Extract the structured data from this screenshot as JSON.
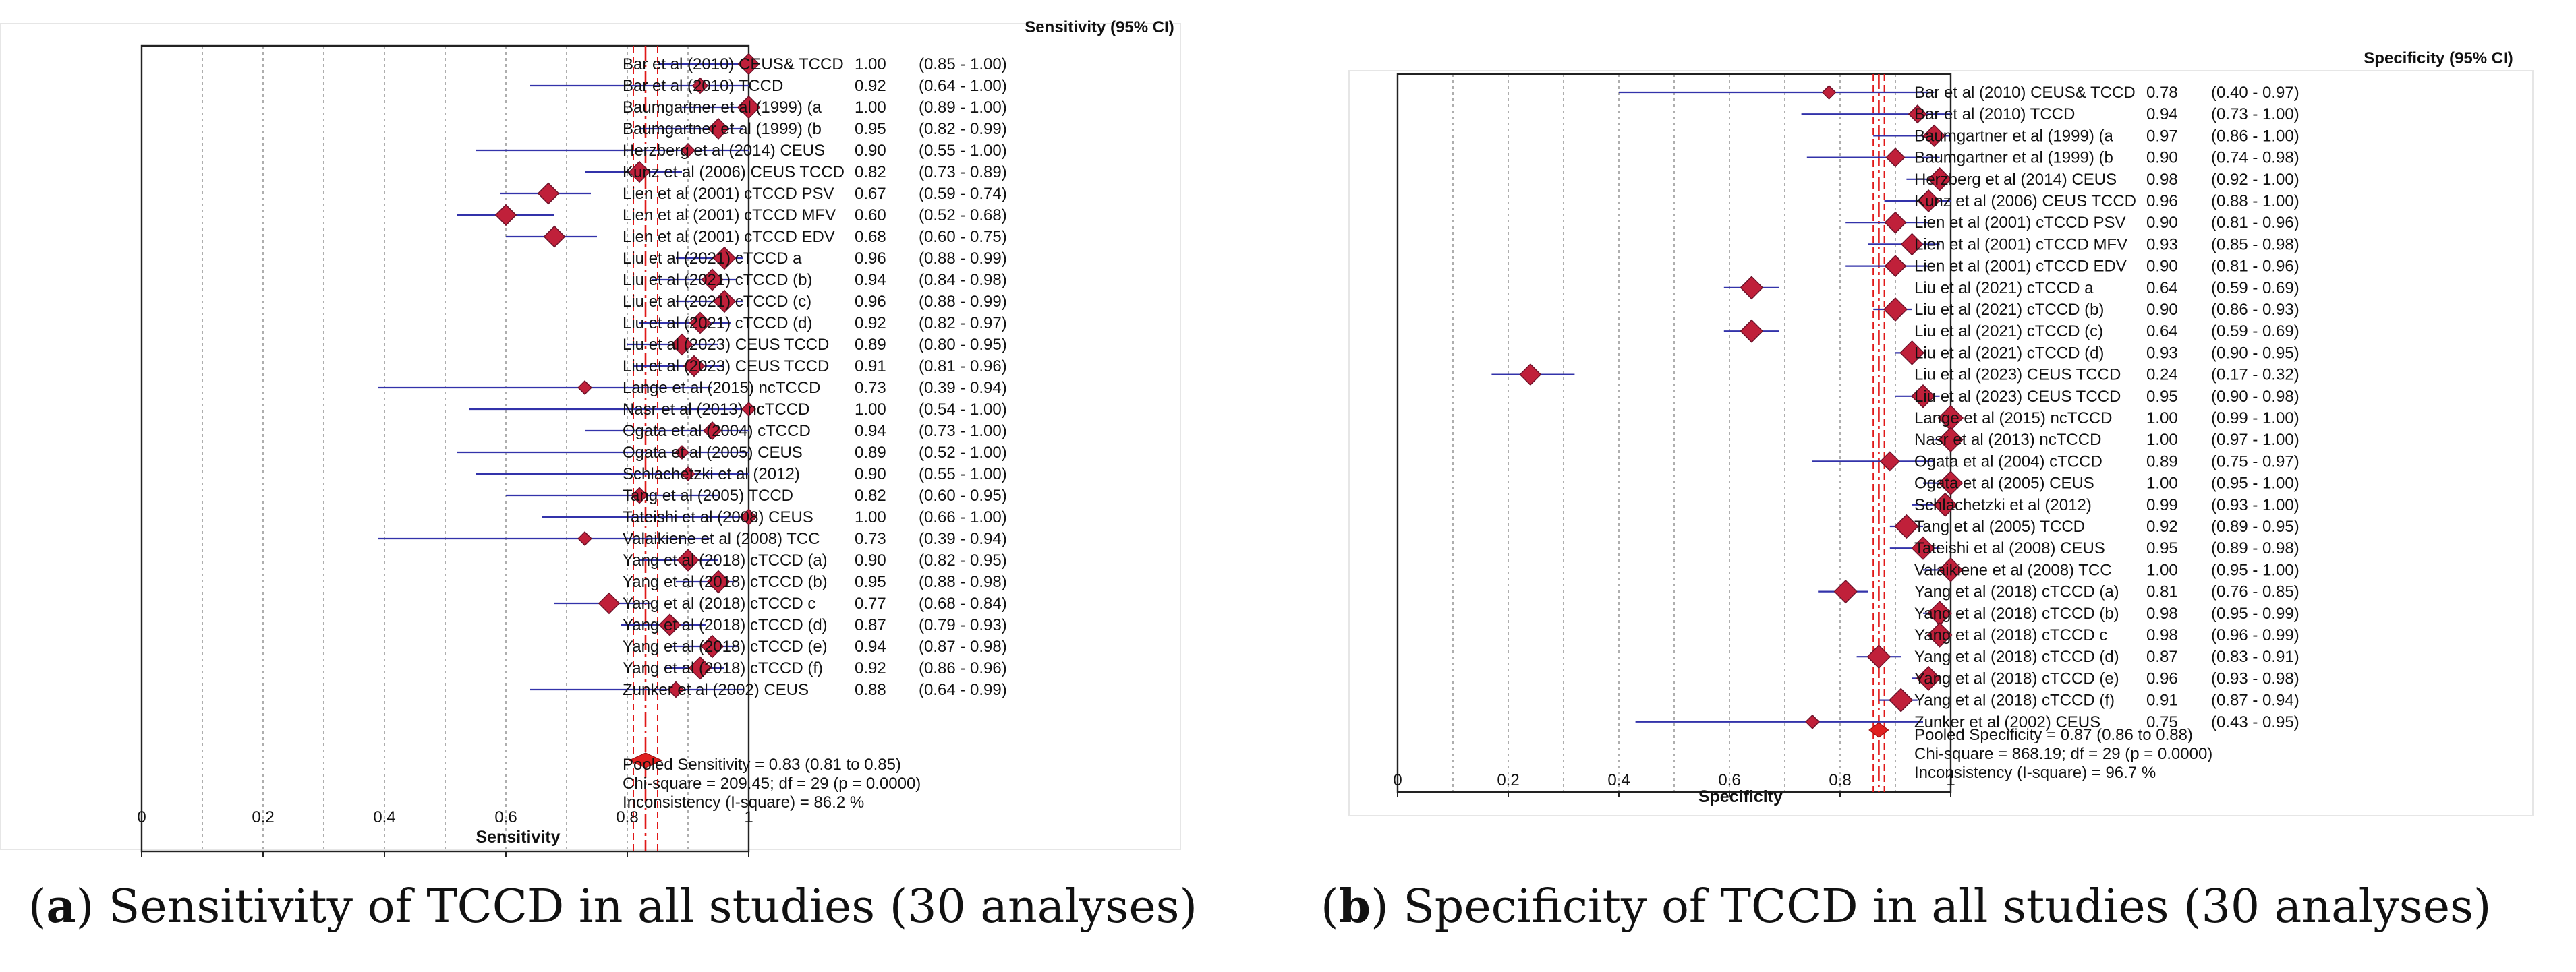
{
  "chart_data": [
    {
      "type": "forest",
      "caption_letter": "a",
      "caption_text": " Sensitivity of TCCD in all studies (30 analyses)",
      "table_header": "Sensitivity (95% CI)",
      "xlabel": "Sensitivity",
      "xlim": [
        0,
        1
      ],
      "xticks": [
        "0",
        "0.2",
        "0.4",
        "0.6",
        "0.8",
        "1"
      ],
      "pooled": 0.83,
      "pooled_ci": [
        0.81,
        0.85
      ],
      "footer": [
        "Pooled Sensitivity = 0.83 (0.81 to 0.85)",
        "Chi-square = 209.45; df =  29 (p = 0.0000)",
        "Inconsistency (I-square) = 86.2 %"
      ],
      "studies": [
        {
          "label": "Bar et al (2010) CEUS& TCCD",
          "est": 1.0,
          "lo": 0.85,
          "hi": 1.0,
          "est_text": "1.00",
          "ci_text": "(0.85 - 1.00)"
        },
        {
          "label": "Bar et al (2010) TCCD",
          "est": 0.92,
          "lo": 0.64,
          "hi": 1.0,
          "est_text": "0.92",
          "ci_text": "(0.64 - 1.00)"
        },
        {
          "label": "Baumgartner et al (1999) (a",
          "est": 1.0,
          "lo": 0.89,
          "hi": 1.0,
          "est_text": "1.00",
          "ci_text": "(0.89 - 1.00)"
        },
        {
          "label": "Baumgartner et al (1999) (b",
          "est": 0.95,
          "lo": 0.82,
          "hi": 0.99,
          "est_text": "0.95",
          "ci_text": "(0.82 - 0.99)"
        },
        {
          "label": "Herzberg et al (2014) CEUS",
          "est": 0.9,
          "lo": 0.55,
          "hi": 1.0,
          "est_text": "0.90",
          "ci_text": "(0.55 - 1.00)"
        },
        {
          "label": "Kunz et al (2006) CEUS TCCD",
          "est": 0.82,
          "lo": 0.73,
          "hi": 0.89,
          "est_text": "0.82",
          "ci_text": "(0.73 - 0.89)"
        },
        {
          "label": "Lien et al (2001) cTCCD PSV",
          "est": 0.67,
          "lo": 0.59,
          "hi": 0.74,
          "est_text": "0.67",
          "ci_text": "(0.59 - 0.74)"
        },
        {
          "label": "Lien et al (2001) cTCCD MFV",
          "est": 0.6,
          "lo": 0.52,
          "hi": 0.68,
          "est_text": "0.60",
          "ci_text": "(0.52 - 0.68)"
        },
        {
          "label": "Lien et al (2001) cTCCD EDV",
          "est": 0.68,
          "lo": 0.6,
          "hi": 0.75,
          "est_text": "0.68",
          "ci_text": "(0.60 - 0.75)"
        },
        {
          "label": "Liu et al (2021) cTCCD a",
          "est": 0.96,
          "lo": 0.88,
          "hi": 0.99,
          "est_text": "0.96",
          "ci_text": "(0.88 - 0.99)"
        },
        {
          "label": "Liu et al (2021) cTCCD (b)",
          "est": 0.94,
          "lo": 0.84,
          "hi": 0.98,
          "est_text": "0.94",
          "ci_text": "(0.84 - 0.98)"
        },
        {
          "label": "Liu et al (2021) cTCCD (c)",
          "est": 0.96,
          "lo": 0.88,
          "hi": 0.99,
          "est_text": "0.96",
          "ci_text": "(0.88 - 0.99)"
        },
        {
          "label": "Liu et al (2021) cTCCD (d)",
          "est": 0.92,
          "lo": 0.82,
          "hi": 0.97,
          "est_text": "0.92",
          "ci_text": "(0.82 - 0.97)"
        },
        {
          "label": "Liu et al (2023) CEUS TCCD",
          "est": 0.89,
          "lo": 0.8,
          "hi": 0.95,
          "est_text": "0.89",
          "ci_text": "(0.80 - 0.95)"
        },
        {
          "label": "Liu et al (2023) CEUS TCCD",
          "est": 0.91,
          "lo": 0.81,
          "hi": 0.96,
          "est_text": "0.91",
          "ci_text": "(0.81 - 0.96)"
        },
        {
          "label": "Lange et al (2015) ncTCCD",
          "est": 0.73,
          "lo": 0.39,
          "hi": 0.94,
          "est_text": "0.73",
          "ci_text": "(0.39 - 0.94)"
        },
        {
          "label": "Nasr et al (2013) ncTCCD",
          "est": 1.0,
          "lo": 0.54,
          "hi": 1.0,
          "est_text": "1.00",
          "ci_text": "(0.54 - 1.00)"
        },
        {
          "label": "Ogata et al (2004) cTCCD",
          "est": 0.94,
          "lo": 0.73,
          "hi": 1.0,
          "est_text": "0.94",
          "ci_text": "(0.73 - 1.00)"
        },
        {
          "label": "Ogata et al (2005) CEUS",
          "est": 0.89,
          "lo": 0.52,
          "hi": 1.0,
          "est_text": "0.89",
          "ci_text": "(0.52 - 1.00)"
        },
        {
          "label": "Schlachetzki et al (2012)",
          "est": 0.9,
          "lo": 0.55,
          "hi": 1.0,
          "est_text": "0.90",
          "ci_text": "(0.55 - 1.00)"
        },
        {
          "label": "Tang et al (2005) TCCD",
          "est": 0.82,
          "lo": 0.6,
          "hi": 0.95,
          "est_text": "0.82",
          "ci_text": "(0.60 - 0.95)"
        },
        {
          "label": "Tateishi et al (2008) CEUS",
          "est": 1.0,
          "lo": 0.66,
          "hi": 1.0,
          "est_text": "1.00",
          "ci_text": "(0.66 - 1.00)"
        },
        {
          "label": "Valaikiene et al (2008) TCC",
          "est": 0.73,
          "lo": 0.39,
          "hi": 0.94,
          "est_text": "0.73",
          "ci_text": "(0.39 - 0.94)"
        },
        {
          "label": "Yang et al (2018) cTCCD (a)",
          "est": 0.9,
          "lo": 0.82,
          "hi": 0.95,
          "est_text": "0.90",
          "ci_text": "(0.82 - 0.95)"
        },
        {
          "label": "Yang et al (2018) cTCCD (b)",
          "est": 0.95,
          "lo": 0.88,
          "hi": 0.98,
          "est_text": "0.95",
          "ci_text": "(0.88 - 0.98)"
        },
        {
          "label": "Yang et al (2018) cTCCD c",
          "est": 0.77,
          "lo": 0.68,
          "hi": 0.84,
          "est_text": "0.77",
          "ci_text": "(0.68 - 0.84)"
        },
        {
          "label": "Yang et al (2018) cTCCD (d)",
          "est": 0.87,
          "lo": 0.79,
          "hi": 0.93,
          "est_text": "0.87",
          "ci_text": "(0.79 - 0.93)"
        },
        {
          "label": "Yang et al (2018) cTCCD (e)",
          "est": 0.94,
          "lo": 0.87,
          "hi": 0.98,
          "est_text": "0.94",
          "ci_text": "(0.87 - 0.98)"
        },
        {
          "label": "Yang et al (2018) cTCCD (f)",
          "est": 0.92,
          "lo": 0.86,
          "hi": 0.96,
          "est_text": "0.92",
          "ci_text": "(0.86 - 0.96)"
        },
        {
          "label": "Zunker et al (2002) CEUS",
          "est": 0.88,
          "lo": 0.64,
          "hi": 0.99,
          "est_text": "0.88",
          "ci_text": "(0.64 - 0.99)"
        }
      ]
    },
    {
      "type": "forest",
      "caption_letter": "b",
      "caption_text": " Specificity of TCCD in all studies (30 analyses)",
      "table_header": "Specificity (95% CI)",
      "xlabel": "Specificity",
      "xlim": [
        0,
        1
      ],
      "xticks": [
        "0",
        "0.2",
        "0.4",
        "0.6",
        "0.8",
        "1"
      ],
      "pooled": 0.87,
      "pooled_ci": [
        0.86,
        0.88
      ],
      "footer": [
        "Pooled Specificity = 0.87 (0.86 to 0.88)",
        "Chi-square = 868.19; df =  29 (p = 0.0000)",
        "Inconsistency (I-square) = 96.7 %"
      ],
      "studies": [
        {
          "label": "Bar et al (2010) CEUS& TCCD",
          "est": 0.78,
          "lo": 0.4,
          "hi": 0.97,
          "est_text": "0.78",
          "ci_text": "(0.40 - 0.97)"
        },
        {
          "label": "Bar et al (2010) TCCD",
          "est": 0.94,
          "lo": 0.73,
          "hi": 1.0,
          "est_text": "0.94",
          "ci_text": "(0.73 - 1.00)"
        },
        {
          "label": "Baumgartner et al (1999) (a",
          "est": 0.97,
          "lo": 0.86,
          "hi": 1.0,
          "est_text": "0.97",
          "ci_text": "(0.86 - 1.00)"
        },
        {
          "label": "Baumgartner et al (1999) (b",
          "est": 0.9,
          "lo": 0.74,
          "hi": 0.98,
          "est_text": "0.90",
          "ci_text": "(0.74 - 0.98)"
        },
        {
          "label": "Herzberg et al (2014) CEUS",
          "est": 0.98,
          "lo": 0.92,
          "hi": 1.0,
          "est_text": "0.98",
          "ci_text": "(0.92 - 1.00)"
        },
        {
          "label": "Kunz et al (2006) CEUS TCCD",
          "est": 0.96,
          "lo": 0.88,
          "hi": 1.0,
          "est_text": "0.96",
          "ci_text": "(0.88 - 1.00)"
        },
        {
          "label": "Lien et al (2001) cTCCD PSV",
          "est": 0.9,
          "lo": 0.81,
          "hi": 0.96,
          "est_text": "0.90",
          "ci_text": "(0.81 - 0.96)"
        },
        {
          "label": "Lien et al (2001) cTCCD MFV",
          "est": 0.93,
          "lo": 0.85,
          "hi": 0.98,
          "est_text": "0.93",
          "ci_text": "(0.85 - 0.98)"
        },
        {
          "label": "Lien et al (2001) cTCCD EDV",
          "est": 0.9,
          "lo": 0.81,
          "hi": 0.96,
          "est_text": "0.90",
          "ci_text": "(0.81 - 0.96)"
        },
        {
          "label": "Liu et al (2021) cTCCD a",
          "est": 0.64,
          "lo": 0.59,
          "hi": 0.69,
          "est_text": "0.64",
          "ci_text": "(0.59 - 0.69)"
        },
        {
          "label": "Liu et al (2021) cTCCD (b)",
          "est": 0.9,
          "lo": 0.86,
          "hi": 0.93,
          "est_text": "0.90",
          "ci_text": "(0.86 - 0.93)"
        },
        {
          "label": "Liu et al (2021) cTCCD (c)",
          "est": 0.64,
          "lo": 0.59,
          "hi": 0.69,
          "est_text": "0.64",
          "ci_text": "(0.59 - 0.69)"
        },
        {
          "label": "Liu et al (2021) cTCCD (d)",
          "est": 0.93,
          "lo": 0.9,
          "hi": 0.95,
          "est_text": "0.93",
          "ci_text": "(0.90 - 0.95)"
        },
        {
          "label": "Liu et al (2023) CEUS TCCD",
          "est": 0.24,
          "lo": 0.17,
          "hi": 0.32,
          "est_text": "0.24",
          "ci_text": "(0.17 - 0.32)"
        },
        {
          "label": "Liu et al (2023) CEUS TCCD",
          "est": 0.95,
          "lo": 0.9,
          "hi": 0.98,
          "est_text": "0.95",
          "ci_text": "(0.90 - 0.98)"
        },
        {
          "label": "Lange et al (2015) ncTCCD",
          "est": 1.0,
          "lo": 0.99,
          "hi": 1.0,
          "est_text": "1.00",
          "ci_text": "(0.99 - 1.00)"
        },
        {
          "label": "Nasr et al (2013) ncTCCD",
          "est": 1.0,
          "lo": 0.97,
          "hi": 1.0,
          "est_text": "1.00",
          "ci_text": "(0.97 - 1.00)"
        },
        {
          "label": "Ogata et al (2004) cTCCD",
          "est": 0.89,
          "lo": 0.75,
          "hi": 0.97,
          "est_text": "0.89",
          "ci_text": "(0.75 - 0.97)"
        },
        {
          "label": "Ogata et al (2005) CEUS",
          "est": 1.0,
          "lo": 0.95,
          "hi": 1.0,
          "est_text": "1.00",
          "ci_text": "(0.95 - 1.00)"
        },
        {
          "label": "Schlachetzki et al (2012)",
          "est": 0.99,
          "lo": 0.93,
          "hi": 1.0,
          "est_text": "0.99",
          "ci_text": "(0.93 - 1.00)"
        },
        {
          "label": "Tang et al (2005) TCCD",
          "est": 0.92,
          "lo": 0.89,
          "hi": 0.95,
          "est_text": "0.92",
          "ci_text": "(0.89 - 0.95)"
        },
        {
          "label": "Tateishi et al (2008) CEUS",
          "est": 0.95,
          "lo": 0.89,
          "hi": 0.98,
          "est_text": "0.95",
          "ci_text": "(0.89 - 0.98)"
        },
        {
          "label": "Valaikiene et al (2008) TCC",
          "est": 1.0,
          "lo": 0.95,
          "hi": 1.0,
          "est_text": "1.00",
          "ci_text": "(0.95 - 1.00)"
        },
        {
          "label": "Yang et al (2018) cTCCD (a)",
          "est": 0.81,
          "lo": 0.76,
          "hi": 0.85,
          "est_text": "0.81",
          "ci_text": "(0.76 - 0.85)"
        },
        {
          "label": "Yang et al (2018) cTCCD (b)",
          "est": 0.98,
          "lo": 0.95,
          "hi": 0.99,
          "est_text": "0.98",
          "ci_text": "(0.95 - 0.99)"
        },
        {
          "label": "Yang et al (2018) cTCCD c",
          "est": 0.98,
          "lo": 0.96,
          "hi": 0.99,
          "est_text": "0.98",
          "ci_text": "(0.96 - 0.99)"
        },
        {
          "label": "Yang et al (2018) cTCCD (d)",
          "est": 0.87,
          "lo": 0.83,
          "hi": 0.91,
          "est_text": "0.87",
          "ci_text": "(0.83 - 0.91)"
        },
        {
          "label": "Yang et al (2018) cTCCD (e)",
          "est": 0.96,
          "lo": 0.93,
          "hi": 0.98,
          "est_text": "0.96",
          "ci_text": "(0.93 - 0.98)"
        },
        {
          "label": "Yang et al (2018) cTCCD (f)",
          "est": 0.91,
          "lo": 0.87,
          "hi": 0.94,
          "est_text": "0.91",
          "ci_text": "(0.87 - 0.94)"
        },
        {
          "label": "Zunker et al (2002) CEUS",
          "est": 0.75,
          "lo": 0.43,
          "hi": 0.95,
          "est_text": "0.75",
          "ci_text": "(0.43 - 0.95)"
        }
      ]
    }
  ],
  "colors": {
    "ci_line": "#3333aa",
    "marker_fill": "#c0203a",
    "marker_stroke": "#6a1028",
    "pooled_line": "#e01818",
    "grid": "#9a9a9a",
    "frame": "#222222",
    "text": "#111111"
  }
}
